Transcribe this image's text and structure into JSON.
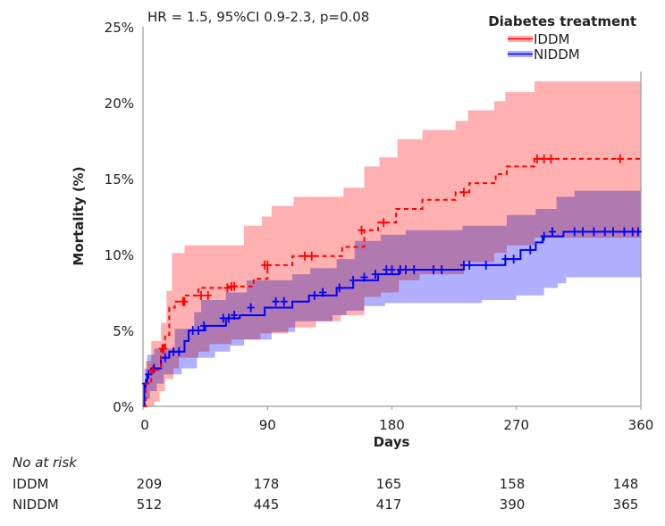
{
  "chart_data": {
    "type": "line",
    "subtype": "kaplan-meier",
    "annotation": "HR = 1.5, 95%CI 0.9-2.3, p=0.08",
    "xlabel": "Days",
    "ylabel": "Mortality (%)",
    "xlim": [
      0,
      360
    ],
    "ylim": [
      0,
      25
    ],
    "xticks": [
      0,
      90,
      180,
      270,
      360
    ],
    "xtick_labels": [
      "0",
      "90",
      "180",
      "270",
      "360"
    ],
    "yticks": [
      0,
      5,
      10,
      15,
      20,
      25
    ],
    "ytick_labels": [
      "0%",
      "5%",
      "10%",
      "15%",
      "20%",
      "25%"
    ],
    "legend": {
      "title": "Diabetes treatment",
      "placement": "top-right"
    },
    "series": [
      {
        "name": "IDDM",
        "color": "#ff0000",
        "band_color": "#ffb0b0",
        "dash": true,
        "steps": [
          [
            0,
            0
          ],
          [
            2,
            1.5
          ],
          [
            6,
            2.4
          ],
          [
            13,
            3.8
          ],
          [
            16,
            4.7
          ],
          [
            19,
            6.5
          ],
          [
            23,
            6.9
          ],
          [
            29,
            7.3
          ],
          [
            40,
            7.8
          ],
          [
            63,
            7.9
          ],
          [
            80,
            8.4
          ],
          [
            90,
            9.3
          ],
          [
            108,
            9.9
          ],
          [
            144,
            10.5
          ],
          [
            160,
            11.6
          ],
          [
            170,
            12.1
          ],
          [
            183,
            13.0
          ],
          [
            202,
            13.6
          ],
          [
            226,
            14.1
          ],
          [
            236,
            14.7
          ],
          [
            255,
            15.3
          ],
          [
            263,
            15.8
          ],
          [
            283,
            16.3
          ]
        ],
        "upper": [
          [
            0,
            0
          ],
          [
            2,
            3.0
          ],
          [
            6,
            4.3
          ],
          [
            13,
            5.5
          ],
          [
            17,
            7.6
          ],
          [
            21,
            10.1
          ],
          [
            30,
            10.6
          ],
          [
            73,
            11.9
          ],
          [
            86,
            12.5
          ],
          [
            93,
            13.2
          ],
          [
            109,
            13.8
          ],
          [
            145,
            14.4
          ],
          [
            160,
            15.8
          ],
          [
            171,
            16.4
          ],
          [
            184,
            17.6
          ],
          [
            202,
            18.2
          ],
          [
            226,
            18.8
          ],
          [
            235,
            19.5
          ],
          [
            254,
            20.1
          ],
          [
            262,
            20.7
          ],
          [
            283,
            21.4
          ]
        ],
        "lower": [
          [
            0,
            0
          ],
          [
            8,
            0.3
          ],
          [
            12,
            1.0
          ],
          [
            16,
            1.8
          ],
          [
            22,
            2.5
          ],
          [
            26,
            3.2
          ],
          [
            40,
            3.6
          ],
          [
            48,
            4.1
          ],
          [
            64,
            4.4
          ],
          [
            85,
            4.8
          ],
          [
            105,
            5.2
          ],
          [
            125,
            5.6
          ],
          [
            143,
            6.0
          ],
          [
            160,
            7.2
          ],
          [
            172,
            7.5
          ],
          [
            185,
            8.3
          ],
          [
            200,
            8.7
          ],
          [
            232,
            9.5
          ],
          [
            254,
            10.1
          ],
          [
            263,
            10.6
          ],
          [
            283,
            11.1
          ]
        ],
        "censored": [
          [
            7,
            2.4
          ],
          [
            14,
            3.8
          ],
          [
            15,
            3.8
          ],
          [
            29,
            6.9
          ],
          [
            30,
            6.9
          ],
          [
            42,
            7.3
          ],
          [
            47,
            7.3
          ],
          [
            61,
            7.8
          ],
          [
            64,
            7.9
          ],
          [
            66,
            7.9
          ],
          [
            88,
            9.3
          ],
          [
            90,
            9.3
          ],
          [
            117,
            9.9
          ],
          [
            122,
            9.9
          ],
          [
            158,
            11.6
          ],
          [
            174,
            12.1
          ],
          [
            232,
            14.1
          ],
          [
            285,
            16.3
          ],
          [
            290,
            16.3
          ],
          [
            295,
            16.3
          ],
          [
            345,
            16.3
          ]
        ]
      },
      {
        "name": "NIDDM",
        "color": "#0000ff",
        "band_color": "#b0b0ff",
        "dash": false,
        "steps": [
          [
            0,
            0
          ],
          [
            1,
            1.5
          ],
          [
            3,
            2.1
          ],
          [
            6,
            2.5
          ],
          [
            13,
            3.2
          ],
          [
            19,
            3.6
          ],
          [
            30,
            4.3
          ],
          [
            33,
            5.0
          ],
          [
            45,
            5.3
          ],
          [
            60,
            5.8
          ],
          [
            70,
            6.0
          ],
          [
            88,
            6.5
          ],
          [
            108,
            6.9
          ],
          [
            120,
            7.3
          ],
          [
            140,
            7.8
          ],
          [
            152,
            8.3
          ],
          [
            170,
            8.7
          ],
          [
            185,
            9.0
          ],
          [
            232,
            9.3
          ],
          [
            262,
            9.7
          ],
          [
            273,
            10.3
          ],
          [
            284,
            10.8
          ],
          [
            289,
            11.2
          ],
          [
            304,
            11.5
          ]
        ],
        "upper": [
          [
            0,
            0.8
          ],
          [
            1,
            2.5
          ],
          [
            3,
            3.4
          ],
          [
            8,
            3.8
          ],
          [
            23,
            5.1
          ],
          [
            37,
            6.2
          ],
          [
            42,
            7.0
          ],
          [
            60,
            7.5
          ],
          [
            75,
            8.3
          ],
          [
            108,
            8.7
          ],
          [
            121,
            9.1
          ],
          [
            140,
            9.7
          ],
          [
            153,
            10.9
          ],
          [
            172,
            11.3
          ],
          [
            190,
            11.6
          ],
          [
            231,
            11.9
          ],
          [
            263,
            12.6
          ],
          [
            284,
            13.0
          ],
          [
            299,
            13.8
          ],
          [
            312,
            14.2
          ]
        ],
        "lower": [
          [
            0,
            0
          ],
          [
            2,
            0.5
          ],
          [
            5,
            1.0
          ],
          [
            10,
            1.5
          ],
          [
            15,
            2.1
          ],
          [
            28,
            2.5
          ],
          [
            39,
            3.2
          ],
          [
            52,
            3.6
          ],
          [
            63,
            4.0
          ],
          [
            73,
            4.4
          ],
          [
            93,
            4.9
          ],
          [
            110,
            5.6
          ],
          [
            137,
            6.0
          ],
          [
            147,
            6.3
          ],
          [
            160,
            6.6
          ],
          [
            175,
            6.8
          ],
          [
            245,
            7.0
          ],
          [
            270,
            7.3
          ],
          [
            290,
            7.8
          ],
          [
            300,
            8.1
          ],
          [
            306,
            8.5
          ]
        ],
        "censored": [
          [
            2,
            1.5
          ],
          [
            4,
            2.1
          ],
          [
            8,
            2.5
          ],
          [
            16,
            3.2
          ],
          [
            22,
            3.6
          ],
          [
            26,
            3.6
          ],
          [
            36,
            5.0
          ],
          [
            40,
            5.0
          ],
          [
            44,
            5.3
          ],
          [
            58,
            5.8
          ],
          [
            62,
            5.8
          ],
          [
            66,
            6.0
          ],
          [
            78,
            6.5
          ],
          [
            96,
            6.9
          ],
          [
            102,
            6.9
          ],
          [
            124,
            7.3
          ],
          [
            130,
            7.5
          ],
          [
            142,
            7.8
          ],
          [
            152,
            8.3
          ],
          [
            160,
            8.5
          ],
          [
            168,
            8.7
          ],
          [
            176,
            9.0
          ],
          [
            180,
            9.0
          ],
          [
            186,
            9.0
          ],
          [
            190,
            9.0
          ],
          [
            196,
            9.0
          ],
          [
            210,
            9.0
          ],
          [
            216,
            9.0
          ],
          [
            232,
            9.3
          ],
          [
            236,
            9.3
          ],
          [
            248,
            9.3
          ],
          [
            262,
            9.7
          ],
          [
            268,
            9.7
          ],
          [
            280,
            10.3
          ],
          [
            290,
            11.2
          ],
          [
            296,
            11.5
          ],
          [
            312,
            11.5
          ],
          [
            318,
            11.5
          ],
          [
            326,
            11.5
          ],
          [
            334,
            11.5
          ],
          [
            340,
            11.5
          ],
          [
            348,
            11.5
          ],
          [
            354,
            11.5
          ],
          [
            358,
            11.5
          ]
        ]
      }
    ],
    "at_risk": {
      "title": "No at risk",
      "rows": [
        {
          "label": "IDDM",
          "values": [
            "209",
            "178",
            "165",
            "158",
            "148"
          ]
        },
        {
          "label": "NIDDM",
          "values": [
            "512",
            "445",
            "417",
            "390",
            "365"
          ]
        }
      ]
    }
  }
}
